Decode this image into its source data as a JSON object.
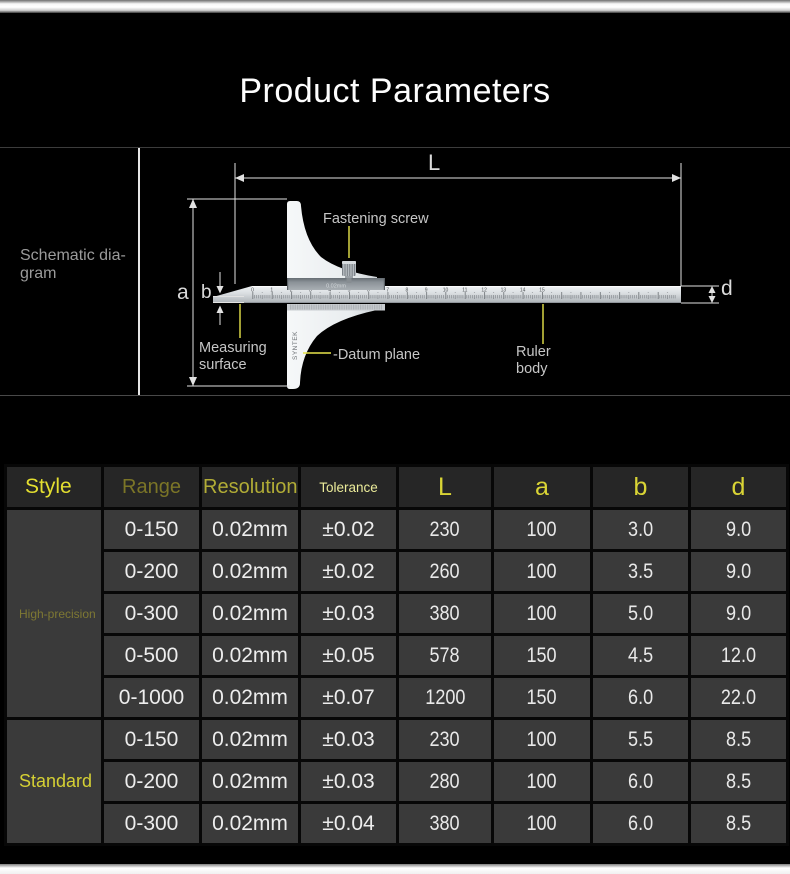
{
  "header": {
    "title": "Product Parameters"
  },
  "diagram": {
    "section_label_lines": [
      "Schematic dia-",
      "gram"
    ],
    "dim_L": "L",
    "dim_a": "a",
    "dim_b": "b",
    "dim_d": "d",
    "fastening_screw": "Fastening screw",
    "measuring_surface_lines": [
      "Measuring",
      "surface"
    ],
    "datum_plane": "-Datum plane",
    "ruler_body_lines": [
      "Ruler",
      "body"
    ],
    "slider_text": "0.02mm",
    "brand_text": "SYNTEK",
    "ruler_numbers": [
      "0",
      "1",
      "2",
      "3",
      "4",
      "5",
      "6",
      "7",
      "8",
      "9",
      "10",
      "11",
      "12",
      "13",
      "14",
      "15"
    ]
  },
  "table": {
    "headers": [
      "Style",
      "Range",
      "Resolution",
      "Tolerance",
      "L",
      "a",
      "b",
      "d"
    ],
    "groups": [
      {
        "style": "High-precision",
        "rows": [
          [
            "0-150",
            "0.02mm",
            "±0.02",
            "230",
            "100",
            "3.0",
            "9.0"
          ],
          [
            "0-200",
            "0.02mm",
            "±0.02",
            "260",
            "100",
            "3.5",
            "9.0"
          ],
          [
            "0-300",
            "0.02mm",
            "±0.03",
            "380",
            "100",
            "5.0",
            "9.0"
          ],
          [
            "0-500",
            "0.02mm",
            "±0.05",
            "578",
            "150",
            "4.5",
            "12.0"
          ],
          [
            "0-1000",
            "0.02mm",
            "±0.07",
            "1200",
            "150",
            "6.0",
            "22.0"
          ]
        ]
      },
      {
        "style": "Standard",
        "rows": [
          [
            "0-150",
            "0.02mm",
            "±0.03",
            "230",
            "100",
            "5.5",
            "8.5"
          ],
          [
            "0-200",
            "0.02mm",
            "±0.03",
            "280",
            "100",
            "6.0",
            "8.5"
          ],
          [
            "0-300",
            "0.02mm",
            "±0.04",
            "380",
            "100",
            "6.0",
            "8.5"
          ]
        ]
      }
    ]
  },
  "colors": {
    "background": "#000000",
    "table_cell": "#3a3a3a",
    "table_header": "#262626",
    "accent_yellow_bright": "#e4df30",
    "accent_yellow_dim": "#7b7527",
    "leader_yellow": "#e8e44a",
    "text_white": "#ededed"
  }
}
